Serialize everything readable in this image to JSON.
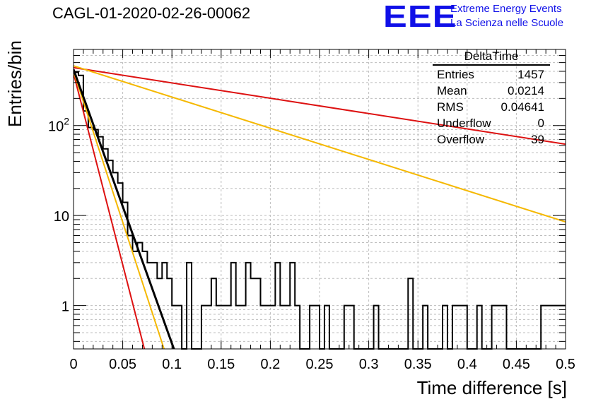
{
  "title": "CAGL-01-2020-02-26-00062",
  "logo": {
    "mark": "EEE",
    "line1": "Extreme Energy Events",
    "line2": "La Scienza nelle Scuole"
  },
  "stats_box": {
    "name": "DeltaTime",
    "rows": [
      {
        "label": "Entries",
        "value": "1457"
      },
      {
        "label": "Mean",
        "value": "0.0214"
      },
      {
        "label": "RMS",
        "value": "0.04641"
      },
      {
        "label": "Underflow",
        "value": "0"
      },
      {
        "label": "Overflow",
        "value": "39"
      }
    ]
  },
  "chart_data": {
    "type": "histogram",
    "xlabel": "Time difference [s]",
    "ylabel": "Entries/bin",
    "xlim": [
      0,
      0.5
    ],
    "ylim": [
      0.33,
      700
    ],
    "yscale": "log",
    "grid": true,
    "x_ticks": [
      0,
      0.05,
      0.1,
      0.15,
      0.2,
      0.25,
      0.3,
      0.35,
      0.4,
      0.45,
      0.5
    ],
    "x_tick_labels": [
      "0",
      "0.05",
      "0.1",
      "0.15",
      "0.2",
      "0.25",
      "0.3",
      "0.35",
      "0.4",
      "0.45",
      "0.5"
    ],
    "y_tick_values": [
      1,
      10,
      100
    ],
    "y_tick_labels": [
      "1",
      "10",
      "10^2"
    ],
    "bin_width": 0.005,
    "bins": [
      {
        "x0": 0.0,
        "y": 390
      },
      {
        "x0": 0.005,
        "y": 360
      },
      {
        "x0": 0.01,
        "y": 145
      },
      {
        "x0": 0.015,
        "y": 95
      },
      {
        "x0": 0.02,
        "y": 90
      },
      {
        "x0": 0.025,
        "y": 75
      },
      {
        "x0": 0.03,
        "y": 55
      },
      {
        "x0": 0.035,
        "y": 41
      },
      {
        "x0": 0.04,
        "y": 30
      },
      {
        "x0": 0.045,
        "y": 23
      },
      {
        "x0": 0.05,
        "y": 14
      },
      {
        "x0": 0.055,
        "y": 6
      },
      {
        "x0": 0.06,
        "y": 4
      },
      {
        "x0": 0.065,
        "y": 5
      },
      {
        "x0": 0.07,
        "y": 4
      },
      {
        "x0": 0.075,
        "y": 3
      },
      {
        "x0": 0.08,
        "y": 3
      },
      {
        "x0": 0.085,
        "y": 2
      },
      {
        "x0": 0.09,
        "y": 3
      },
      {
        "x0": 0.095,
        "y": 2
      },
      {
        "x0": 0.1,
        "y": 1
      },
      {
        "x0": 0.105,
        "y": 1
      },
      {
        "x0": 0.115,
        "y": 3
      },
      {
        "x0": 0.13,
        "y": 1
      },
      {
        "x0": 0.135,
        "y": 1
      },
      {
        "x0": 0.14,
        "y": 2
      },
      {
        "x0": 0.145,
        "y": 1
      },
      {
        "x0": 0.15,
        "y": 1
      },
      {
        "x0": 0.155,
        "y": 1
      },
      {
        "x0": 0.16,
        "y": 3
      },
      {
        "x0": 0.165,
        "y": 1
      },
      {
        "x0": 0.17,
        "y": 1
      },
      {
        "x0": 0.175,
        "y": 3
      },
      {
        "x0": 0.18,
        "y": 2
      },
      {
        "x0": 0.185,
        "y": 2
      },
      {
        "x0": 0.19,
        "y": 1
      },
      {
        "x0": 0.195,
        "y": 1
      },
      {
        "x0": 0.2,
        "y": 1
      },
      {
        "x0": 0.205,
        "y": 3
      },
      {
        "x0": 0.21,
        "y": 1
      },
      {
        "x0": 0.215,
        "y": 1
      },
      {
        "x0": 0.22,
        "y": 3
      },
      {
        "x0": 0.225,
        "y": 1
      },
      {
        "x0": 0.24,
        "y": 1
      },
      {
        "x0": 0.245,
        "y": 1
      },
      {
        "x0": 0.255,
        "y": 1
      },
      {
        "x0": 0.275,
        "y": 1
      },
      {
        "x0": 0.28,
        "y": 1
      },
      {
        "x0": 0.305,
        "y": 1
      },
      {
        "x0": 0.34,
        "y": 2
      },
      {
        "x0": 0.355,
        "y": 1
      },
      {
        "x0": 0.375,
        "y": 1
      },
      {
        "x0": 0.385,
        "y": 1
      },
      {
        "x0": 0.39,
        "y": 1
      },
      {
        "x0": 0.395,
        "y": 1
      },
      {
        "x0": 0.41,
        "y": 1
      },
      {
        "x0": 0.425,
        "y": 1
      },
      {
        "x0": 0.43,
        "y": 1
      },
      {
        "x0": 0.435,
        "y": 1
      },
      {
        "x0": 0.475,
        "y": 1
      },
      {
        "x0": 0.48,
        "y": 1
      },
      {
        "x0": 0.485,
        "y": 1
      },
      {
        "x0": 0.49,
        "y": 1
      },
      {
        "x0": 0.495,
        "y": 1
      }
    ],
    "fit_lines": [
      {
        "color": "#dd1111",
        "x0": 0.0,
        "y0": 440,
        "x1": 0.5,
        "y1": 62
      },
      {
        "color": "#f5b800",
        "x0": 0.0,
        "y0": 460,
        "x1": 0.5,
        "y1": 8.5
      },
      {
        "color": "#dd1111",
        "x0": 0.0,
        "y0": 380,
        "x1": 0.072,
        "y1": 0.33
      },
      {
        "color": "#f5b800",
        "x0": 0.0,
        "y0": 400,
        "x1": 0.092,
        "y1": 0.33
      },
      {
        "color": "#000000",
        "x0": 0.0,
        "y0": 420,
        "x1": 0.102,
        "y1": 0.33
      }
    ]
  }
}
